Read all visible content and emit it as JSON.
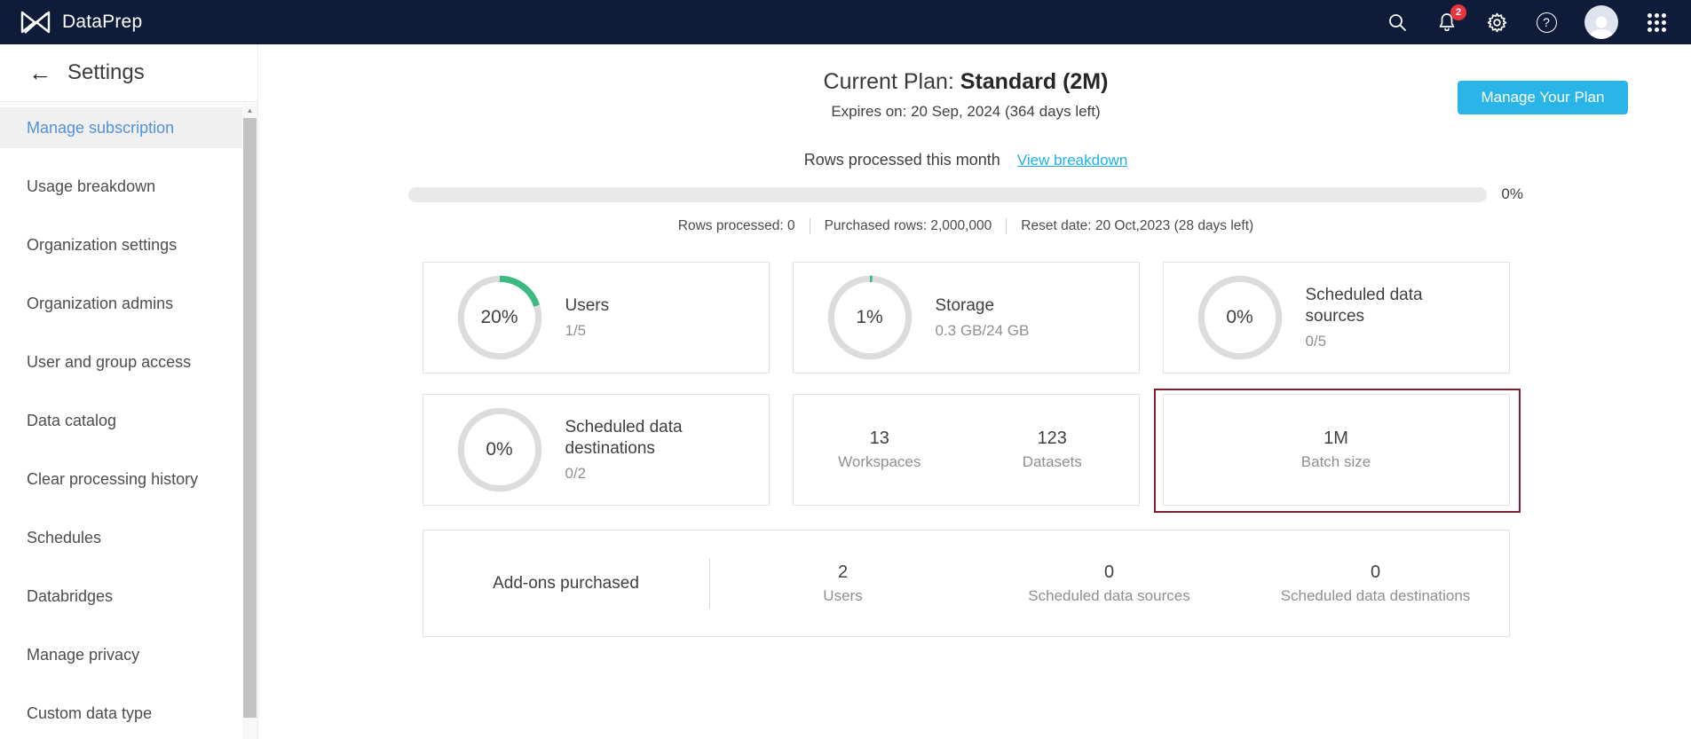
{
  "topbar": {
    "brand": "DataPrep",
    "notification_count": "2",
    "help_glyph": "?"
  },
  "sidebar": {
    "back_glyph": "←",
    "title": "Settings",
    "items": [
      {
        "label": "Manage subscription",
        "selected": true
      },
      {
        "label": "Usage breakdown",
        "selected": false
      },
      {
        "label": "Organization settings",
        "selected": false
      },
      {
        "label": "Organization admins",
        "selected": false
      },
      {
        "label": "User and group access",
        "selected": false
      },
      {
        "label": "Data catalog",
        "selected": false
      },
      {
        "label": "Clear processing history",
        "selected": false
      },
      {
        "label": "Schedules",
        "selected": false
      },
      {
        "label": "Databridges",
        "selected": false
      },
      {
        "label": "Manage privacy",
        "selected": false
      },
      {
        "label": "Custom data type",
        "selected": false
      }
    ]
  },
  "main": {
    "plan": {
      "label": "Current Plan: ",
      "name": "Standard (2M)",
      "expires": "Expires on: 20 Sep, 2024 (364 days left)",
      "manage_button": "Manage Your Plan"
    },
    "rows_section": {
      "title": "Rows processed this month",
      "link": "View breakdown",
      "progress_percent": 0,
      "progress_label": "0%",
      "stats": [
        "Rows processed: 0",
        "Purchased rows: 2,000,000",
        "Reset date: 20 Oct,2023 (28 days left)"
      ]
    },
    "usage_cards": [
      {
        "type": "ring",
        "percent": 20,
        "percent_label": "20%",
        "title": "Users",
        "subtitle": "1/5",
        "highlighted": false
      },
      {
        "type": "ring",
        "percent": 1,
        "percent_label": "1%",
        "title": "Storage",
        "subtitle": "0.3 GB/24 GB",
        "highlighted": false
      },
      {
        "type": "ring",
        "percent": 0,
        "percent_label": "0%",
        "title": "Scheduled data sources",
        "subtitle": "0/5",
        "highlighted": false
      },
      {
        "type": "ring",
        "percent": 0,
        "percent_label": "0%",
        "title": "Scheduled data destinations",
        "subtitle": "0/2",
        "highlighted": false
      },
      {
        "type": "stats",
        "highlighted": false,
        "stats": [
          {
            "value": "13",
            "label": "Workspaces"
          },
          {
            "value": "123",
            "label": "Datasets"
          }
        ]
      },
      {
        "type": "stats",
        "highlighted": true,
        "stats": [
          {
            "value": "1M",
            "label": "Batch size"
          }
        ]
      }
    ],
    "addons": {
      "title": "Add-ons purchased",
      "stats": [
        {
          "value": "2",
          "label": "Users"
        },
        {
          "value": "0",
          "label": "Scheduled data sources"
        },
        {
          "value": "0",
          "label": "Scheduled data destinations"
        }
      ]
    }
  },
  "colors": {
    "navbar_bg": "#0e1c3a",
    "accent_cyan": "#29b5e8",
    "link_cyan": "#1fb0e8",
    "selected_blue": "#5292d5",
    "ring_green": "#3dba84",
    "ring_gray": "#dcdcdc",
    "highlight_maroon": "#7d1f2d",
    "badge_red": "#e8343d"
  }
}
